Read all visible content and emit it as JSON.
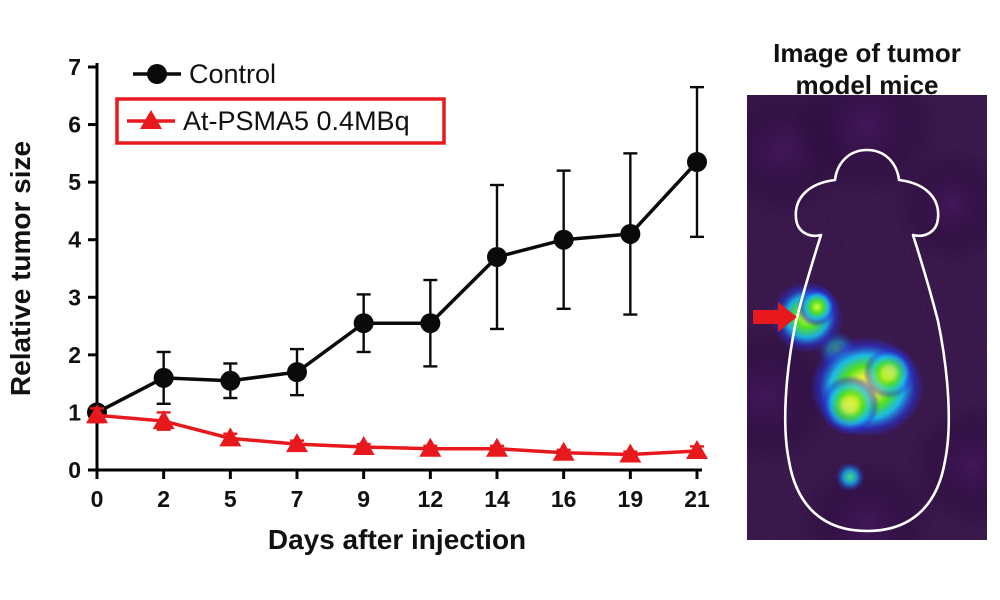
{
  "chart_data": {
    "type": "line",
    "title": "",
    "xlabel": "Days after injection",
    "ylabel": "Relative tumor size",
    "x": [
      0,
      2,
      5,
      7,
      9,
      12,
      14,
      16,
      19,
      21
    ],
    "ylim": [
      0,
      7
    ],
    "yticks": [
      0,
      1,
      2,
      3,
      4,
      5,
      6,
      7
    ],
    "grid": false,
    "legend_position": "top-left-inside",
    "series": [
      {
        "name": "Control",
        "marker": "circle",
        "color": "#0a0a0a",
        "values": [
          1.0,
          1.6,
          1.55,
          1.7,
          2.55,
          2.55,
          3.7,
          4.0,
          4.1,
          5.35
        ],
        "error": [
          0.1,
          0.45,
          0.3,
          0.4,
          0.5,
          0.75,
          1.25,
          1.2,
          1.4,
          1.3
        ],
        "legend_boxed": false
      },
      {
        "name": "At-PSMA5 0.4MBq",
        "marker": "triangle",
        "color": "#e8191c",
        "values": [
          0.95,
          0.85,
          0.55,
          0.45,
          0.4,
          0.37,
          0.37,
          0.3,
          0.27,
          0.33
        ],
        "error": [
          0.12,
          0.15,
          0.08,
          0.06,
          0.05,
          0.05,
          0.05,
          0.05,
          0.05,
          0.08
        ],
        "legend_boxed": true
      }
    ]
  },
  "side_panel": {
    "title_line1": "Image of tumor",
    "title_line2": "model mice",
    "arrow_icon": "red-arrow-pointing-right",
    "colors": {
      "scan_background": "#0b0314",
      "mouse_outline": "#ffffff",
      "arrow": "#e8191c",
      "hot_core": "#f8f84a",
      "mid_intensity": "#46e020",
      "cool_halo": "#1890e8"
    }
  }
}
